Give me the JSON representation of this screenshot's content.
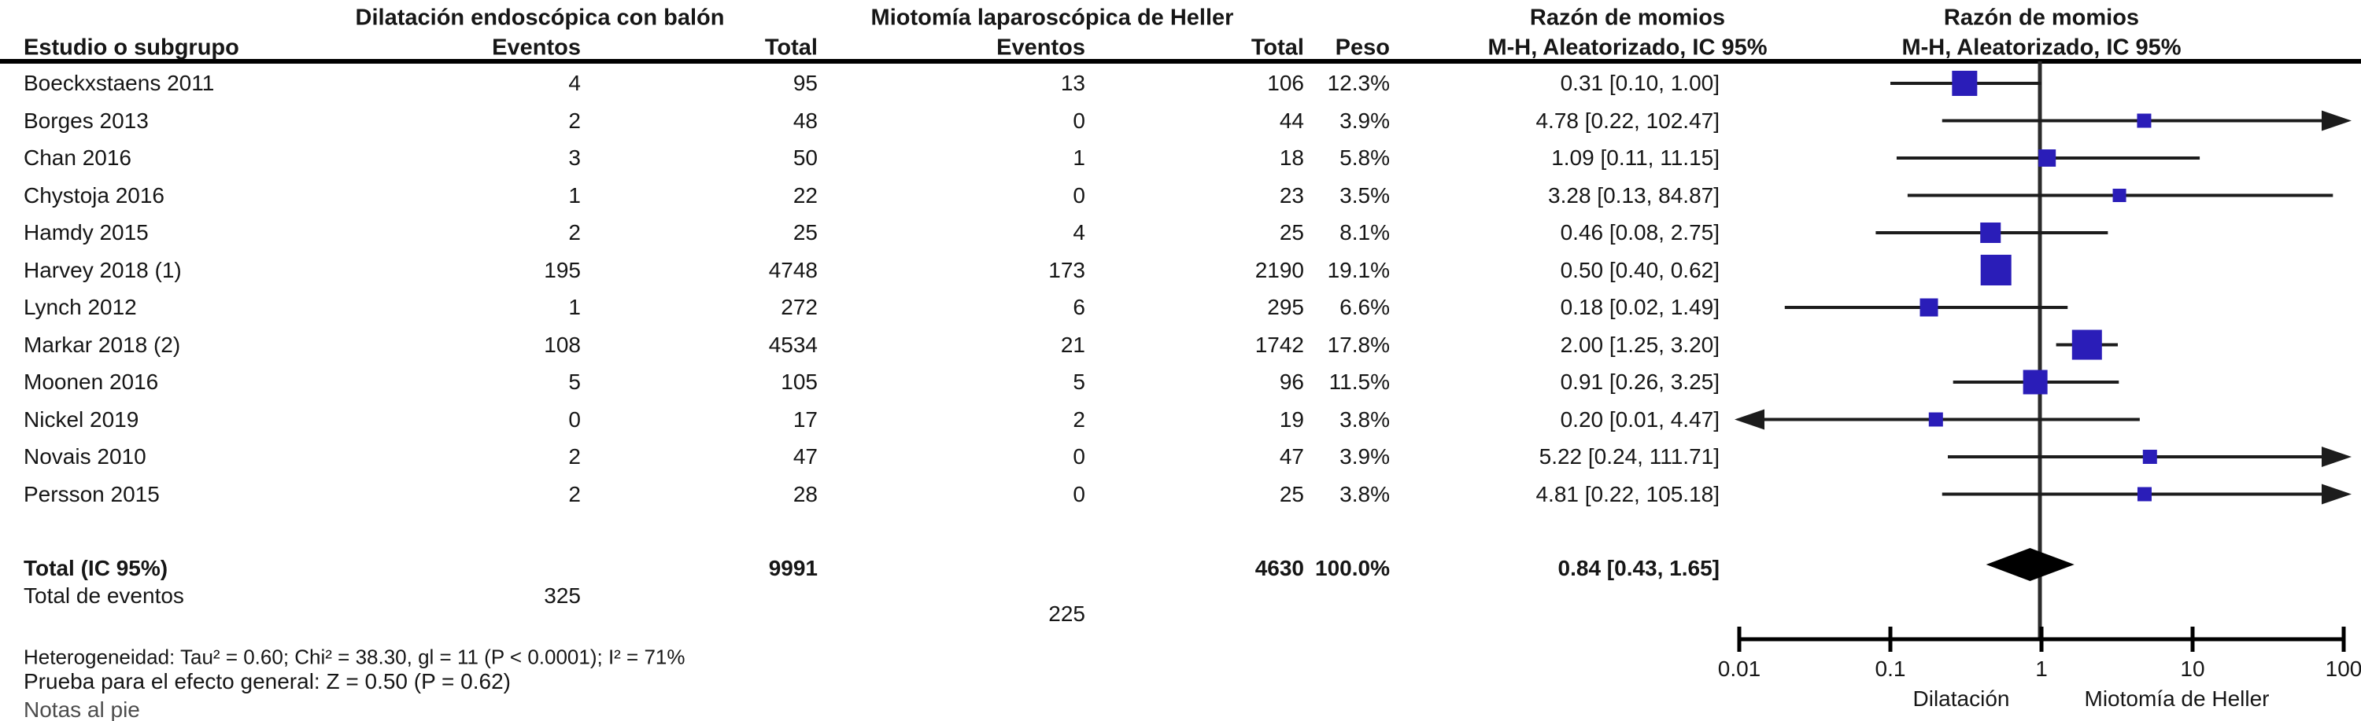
{
  "header": {
    "group1_title": "Dilatación endoscópica con balón",
    "group2_title": "Miotomía laparoscópica de Heller",
    "or_col_title_line1": "Razón de momios",
    "or_col_title_line2": "M-H, Aleatorizado, IC 95%",
    "plot_col_title_line1": "Razón de momios",
    "plot_col_title_line2": "M-H, Aleatorizado, IC 95%",
    "study_col": "Estudio o subgrupo",
    "events_col_1": "Eventos",
    "total_col_1": "Total",
    "events_col_2": "Eventos",
    "total_col_2": "Total",
    "weight_col": "Peso"
  },
  "chart_data": {
    "type": "forest",
    "effect_measure": "Razón de momios, M-H, Aleatorizado, IC 95%",
    "marker_color": "#2a1db8",
    "line_color": "#1c1c1c",
    "diamond_color": "#000000",
    "axis": {
      "min": 0.01,
      "max": 100,
      "null_line": 1,
      "ticks": [
        0.01,
        0.1,
        1,
        10,
        100
      ]
    },
    "axis_label_left": "Dilatación",
    "axis_label_right": "Miotomía de Heller",
    "studies": [
      {
        "name": "Boeckxstaens 2011",
        "events1": "4",
        "total1": "95",
        "events2": "13",
        "total2": "106",
        "weight_label": "12.3%",
        "weight": 12.3,
        "or": 0.31,
        "lo": 0.1,
        "hi": 1.0,
        "ci_label": "0.31 [0.10, 1.00]"
      },
      {
        "name": "Borges 2013",
        "events1": "2",
        "total1": "48",
        "events2": "0",
        "total2": "44",
        "weight_label": "3.9%",
        "weight": 3.9,
        "or": 4.78,
        "lo": 0.22,
        "hi": 102.47,
        "ci_label": "4.78 [0.22, 102.47]"
      },
      {
        "name": "Chan 2016",
        "events1": "3",
        "total1": "50",
        "events2": "1",
        "total2": "18",
        "weight_label": "5.8%",
        "weight": 5.8,
        "or": 1.09,
        "lo": 0.11,
        "hi": 11.15,
        "ci_label": "1.09 [0.11, 11.15]"
      },
      {
        "name": "Chystoja 2016",
        "events1": "1",
        "total1": "22",
        "events2": "0",
        "total2": "23",
        "weight_label": "3.5%",
        "weight": 3.5,
        "or": 3.28,
        "lo": 0.13,
        "hi": 84.87,
        "ci_label": "3.28 [0.13, 84.87]"
      },
      {
        "name": "Hamdy 2015",
        "events1": "2",
        "total1": "25",
        "events2": "4",
        "total2": "25",
        "weight_label": "8.1%",
        "weight": 8.1,
        "or": 0.46,
        "lo": 0.08,
        "hi": 2.75,
        "ci_label": "0.46 [0.08, 2.75]"
      },
      {
        "name": "Harvey 2018 (1)",
        "events1": "195",
        "total1": "4748",
        "events2": "173",
        "total2": "2190",
        "weight_label": "19.1%",
        "weight": 19.1,
        "or": 0.5,
        "lo": 0.4,
        "hi": 0.62,
        "ci_label": "0.50 [0.40, 0.62]"
      },
      {
        "name": "Lynch 2012",
        "events1": "1",
        "total1": "272",
        "events2": "6",
        "total2": "295",
        "weight_label": "6.6%",
        "weight": 6.6,
        "or": 0.18,
        "lo": 0.02,
        "hi": 1.49,
        "ci_label": "0.18 [0.02, 1.49]"
      },
      {
        "name": "Markar 2018 (2)",
        "events1": "108",
        "total1": "4534",
        "events2": "21",
        "total2": "1742",
        "weight_label": "17.8%",
        "weight": 17.8,
        "or": 2.0,
        "lo": 1.25,
        "hi": 3.2,
        "ci_label": "2.00 [1.25, 3.20]"
      },
      {
        "name": "Moonen 2016",
        "events1": "5",
        "total1": "105",
        "events2": "5",
        "total2": "96",
        "weight_label": "11.5%",
        "weight": 11.5,
        "or": 0.91,
        "lo": 0.26,
        "hi": 3.25,
        "ci_label": "0.91 [0.26, 3.25]"
      },
      {
        "name": "Nickel 2019",
        "events1": "0",
        "total1": "17",
        "events2": "2",
        "total2": "19",
        "weight_label": "3.8%",
        "weight": 3.8,
        "or": 0.2,
        "lo": 0.01,
        "hi": 4.47,
        "ci_label": "0.20 [0.01, 4.47]"
      },
      {
        "name": "Novais 2010",
        "events1": "2",
        "total1": "47",
        "events2": "0",
        "total2": "47",
        "weight_label": "3.9%",
        "weight": 3.9,
        "or": 5.22,
        "lo": 0.24,
        "hi": 111.71,
        "ci_label": "5.22 [0.24, 111.71]"
      },
      {
        "name": "Persson 2015",
        "events1": "2",
        "total1": "28",
        "events2": "0",
        "total2": "25",
        "weight_label": "3.8%",
        "weight": 3.8,
        "or": 4.81,
        "lo": 0.22,
        "hi": 105.18,
        "ci_label": "4.81 [0.22, 105.18]"
      }
    ],
    "total": {
      "label": "Total (IC 95%)",
      "total1": "9991",
      "total2": "4630",
      "weight_label": "100.0%",
      "or": 0.84,
      "lo": 0.43,
      "hi": 1.65,
      "ci_label": "0.84 [0.43, 1.65]"
    },
    "total_events": {
      "label": "Total de eventos",
      "value1": "325",
      "value2": "225"
    }
  },
  "footer": {
    "heterogeneity": "Heterogeneidad: Tau² = 0.60; Chi² = 38.30, gl = 11 (P < 0.0001); I² = 71%",
    "overall_effect": "Prueba para el efecto general: Z = 0.50 (P = 0.62)",
    "footnote": "Notas al pie"
  }
}
